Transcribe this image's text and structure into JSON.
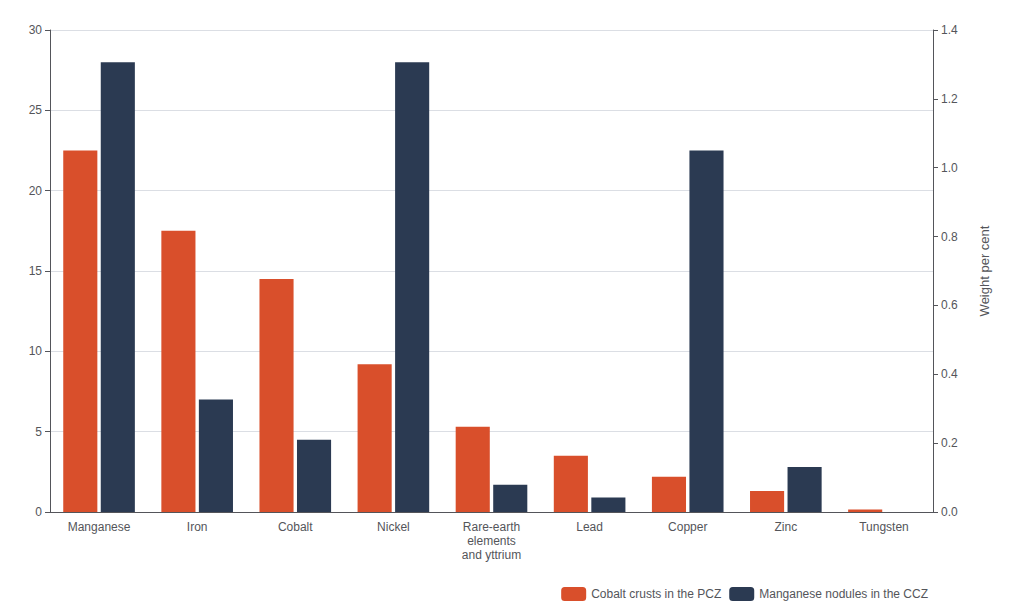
{
  "chart_data": {
    "type": "bar",
    "categories": [
      "Manganese",
      "Iron",
      "Cobalt",
      "Nickel",
      "Rare-earth\nelements\nand yttrium",
      "Lead",
      "Copper",
      "Zinc",
      "Tungsten"
    ],
    "series": [
      {
        "name": "Cobalt crusts in the PCZ",
        "color": "#d94f2b",
        "values": [
          22.5,
          17.5,
          14.5,
          9.2,
          5.3,
          3.5,
          2.2,
          1.3,
          0.15
        ]
      },
      {
        "name": "Manganese nodules in the CCZ",
        "color": "#2b3a52",
        "values": [
          28.0,
          7.0,
          4.5,
          28.0,
          1.7,
          0.9,
          22.5,
          2.8,
          0.0
        ]
      }
    ],
    "ylim": [
      0,
      30
    ],
    "yticks": [
      0,
      5,
      10,
      15,
      20,
      25,
      30
    ],
    "y2label": "Weight per cent",
    "y2lim": [
      0,
      1.4
    ],
    "y2ticks": [
      {
        "value": 0,
        "label": "0.0"
      },
      {
        "value": 0.2,
        "label": "0.2"
      },
      {
        "value": 0.4,
        "label": "0.4"
      },
      {
        "value": 0.6,
        "label": "0.6"
      },
      {
        "value": 0.8,
        "label": "0.8"
      },
      {
        "value": 1.0,
        "label": "1.0"
      },
      {
        "value": 1.2,
        "label": "1.2"
      },
      {
        "value": 1.4,
        "label": "1.4"
      }
    ],
    "grid": true,
    "legend": "lower right"
  }
}
